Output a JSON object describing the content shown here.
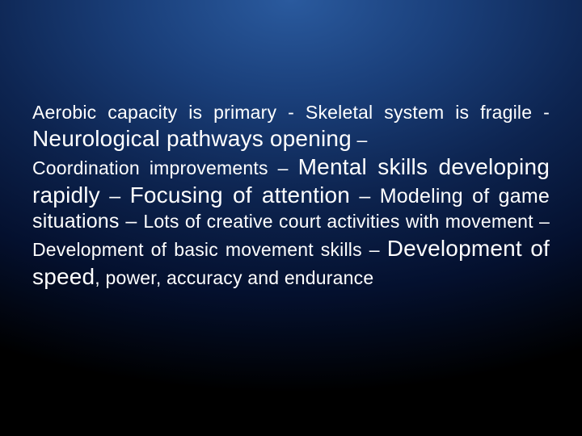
{
  "slide": {
    "background": {
      "gradient_center": "#2a5a9e",
      "gradient_mid": "#0d2450",
      "gradient_outer": "#000000"
    },
    "text_color": "#ffffff",
    "font_family": "Arial",
    "segments": {
      "s1": " Aerobic capacity is primary - Skeletal system is fragile - ",
      "s2": "Neurological pathways opening",
      "s3": " – ",
      "s4": "Coordination improvements – ",
      "s5": "Mental skills developing rapidly",
      "s6": " – ",
      "s7": "Focusing of attention",
      "s8": " – Modeling of game situations – ",
      "s9": "Lots of creative court activities with movement – Development of basic movement skills – ",
      "s10": "Development of speed",
      "s11": ", power, accuracy and endurance"
    },
    "font_sizes": {
      "small": 23,
      "medium": 25,
      "large": 28
    }
  }
}
